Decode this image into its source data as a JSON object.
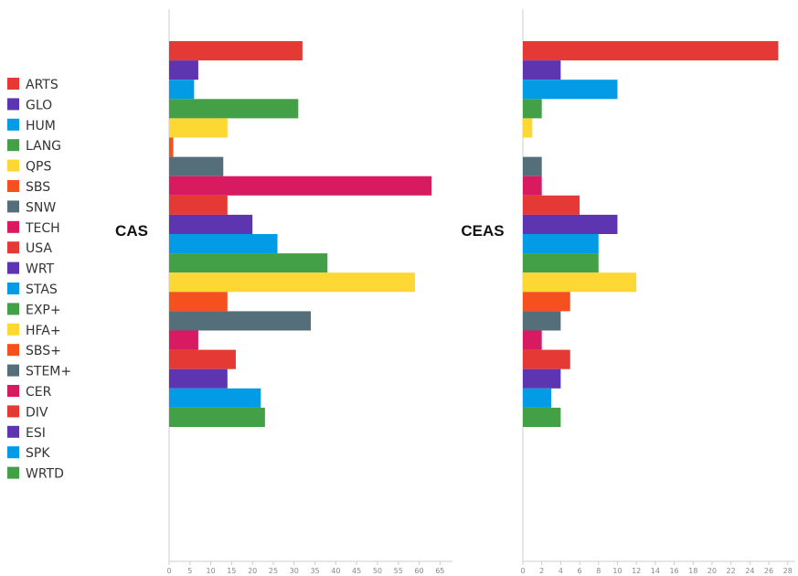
{
  "legend": [
    {
      "name": "ARTS",
      "color": "#e53935"
    },
    {
      "name": "GLO",
      "color": "#5e35b1"
    },
    {
      "name": "HUM",
      "color": "#039be5"
    },
    {
      "name": "LANG",
      "color": "#43a047"
    },
    {
      "name": "QPS",
      "color": "#fdd835"
    },
    {
      "name": "SBS",
      "color": "#f4511e"
    },
    {
      "name": "SNW",
      "color": "#546e7a"
    },
    {
      "name": "TECH",
      "color": "#d81b60"
    },
    {
      "name": "USA",
      "color": "#e53935"
    },
    {
      "name": "WRT",
      "color": "#5e35b1"
    },
    {
      "name": "STAS",
      "color": "#039be5"
    },
    {
      "name": "EXP+",
      "color": "#43a047"
    },
    {
      "name": "HFA+",
      "color": "#fdd835"
    },
    {
      "name": "SBS+",
      "color": "#f4511e"
    },
    {
      "name": "STEM+",
      "color": "#546e7a"
    },
    {
      "name": "CER",
      "color": "#d81b60"
    },
    {
      "name": "DIV",
      "color": "#e53935"
    },
    {
      "name": "ESI",
      "color": "#5e35b1"
    },
    {
      "name": "SPK",
      "color": "#039be5"
    },
    {
      "name": "WRTD",
      "color": "#43a047"
    }
  ],
  "chart_data": [
    {
      "type": "bar",
      "orientation": "horizontal",
      "title": "CAS",
      "categories": [
        "ARTS",
        "GLO",
        "HUM",
        "LANG",
        "QPS",
        "SBS",
        "SNW",
        "TECH",
        "USA",
        "WRT",
        "STAS",
        "EXP+",
        "HFA+",
        "SBS+",
        "STEM+",
        "CER",
        "DIV",
        "ESI",
        "SPK",
        "WRTD"
      ],
      "values": [
        32,
        7,
        6,
        31,
        14,
        1,
        13,
        63,
        14,
        20,
        26,
        38,
        59,
        14,
        34,
        7,
        16,
        14,
        22,
        23
      ],
      "xlim": [
        0,
        68
      ],
      "xticks": [
        0,
        5,
        10,
        15,
        20,
        25,
        30,
        35,
        40,
        45,
        50,
        55,
        60,
        65
      ],
      "grid": false
    },
    {
      "type": "bar",
      "orientation": "horizontal",
      "title": "CEAS",
      "categories": [
        "ARTS",
        "GLO",
        "HUM",
        "LANG",
        "QPS",
        "SBS",
        "SNW",
        "TECH",
        "USA",
        "WRT",
        "STAS",
        "EXP+",
        "HFA+",
        "SBS+",
        "STEM+",
        "CER",
        "DIV",
        "ESI",
        "SPK",
        "WRTD"
      ],
      "values": [
        27,
        4,
        10,
        2,
        1,
        0,
        2,
        2,
        6,
        10,
        8,
        8,
        12,
        5,
        4,
        2,
        5,
        4,
        3,
        4
      ],
      "xlim": [
        0,
        28.8
      ],
      "xticks": [
        0,
        2,
        4,
        6,
        8,
        10,
        12,
        14,
        16,
        18,
        20,
        22,
        24,
        26,
        28
      ],
      "grid": false
    }
  ]
}
